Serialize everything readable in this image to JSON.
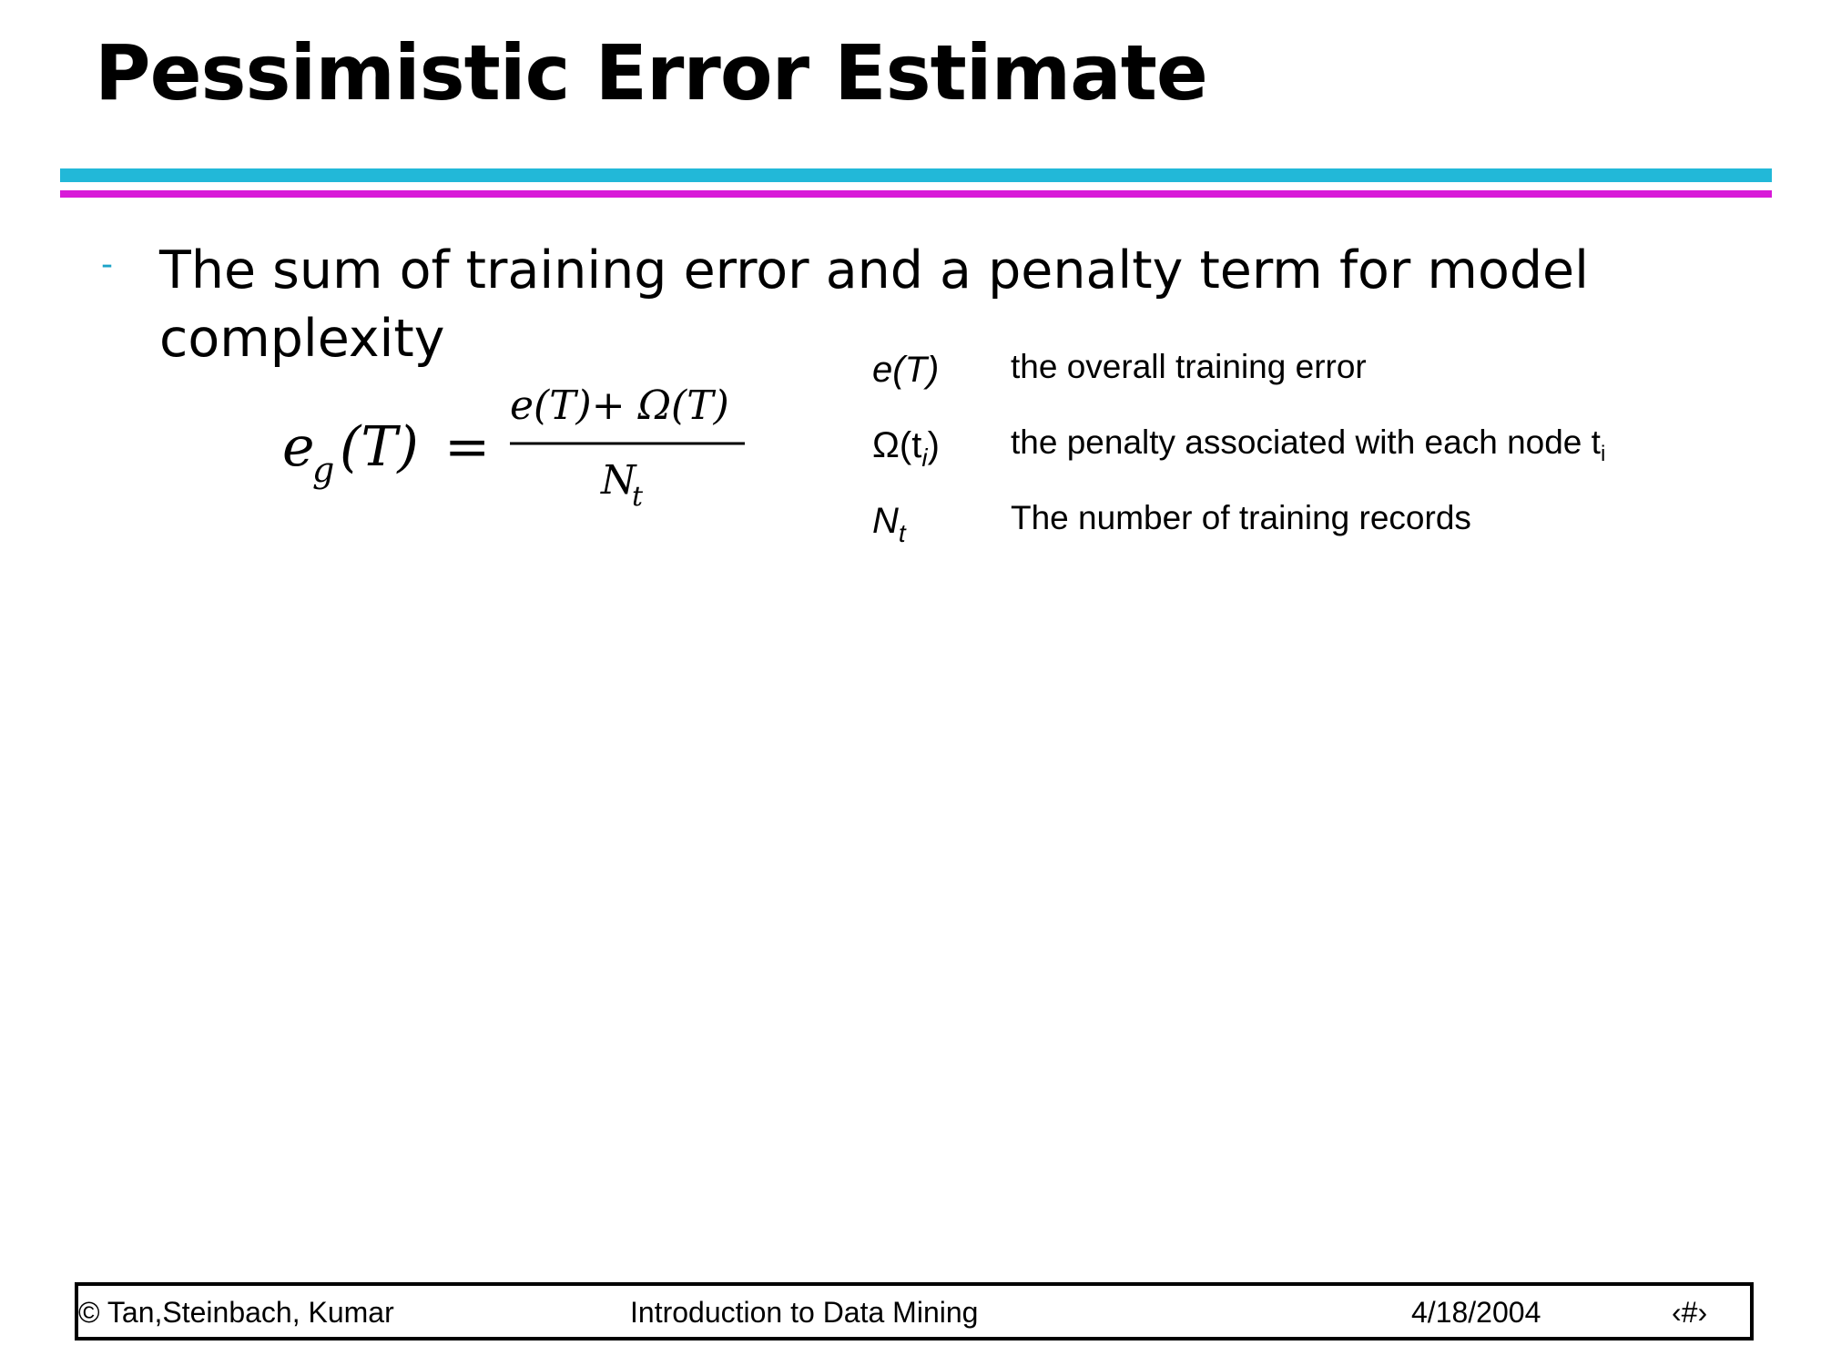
{
  "slide": {
    "title": "Pessimistic Error Estimate",
    "bullet_marker": "-",
    "bullet_text": "The sum of training error and a penalty term for model complexity"
  },
  "formula": {
    "lhs_base": "e",
    "lhs_sub": "g",
    "lhs_arg": "(T)",
    "equals": "=",
    "numerator": "e(T)+ Ω(T)",
    "denominator_base": "N",
    "denominator_sub": "t"
  },
  "legend": [
    {
      "symbol_main": "e(T)",
      "symbol_sub": "",
      "symbol_tail": "",
      "description": "the overall training error",
      "description_sub": ""
    },
    {
      "symbol_main": "Ω(t",
      "symbol_sub": "i",
      "symbol_tail": ")",
      "description": "the penalty associated with each node t",
      "description_sub": "i"
    },
    {
      "symbol_main": "N",
      "symbol_sub": "t",
      "symbol_tail": "",
      "description": "The number of training records",
      "description_sub": ""
    }
  ],
  "footer": {
    "copyright": "© Tan,Steinbach, Kumar",
    "course": "Introduction to Data Mining",
    "date": "4/18/2004",
    "page": "‹#›"
  }
}
